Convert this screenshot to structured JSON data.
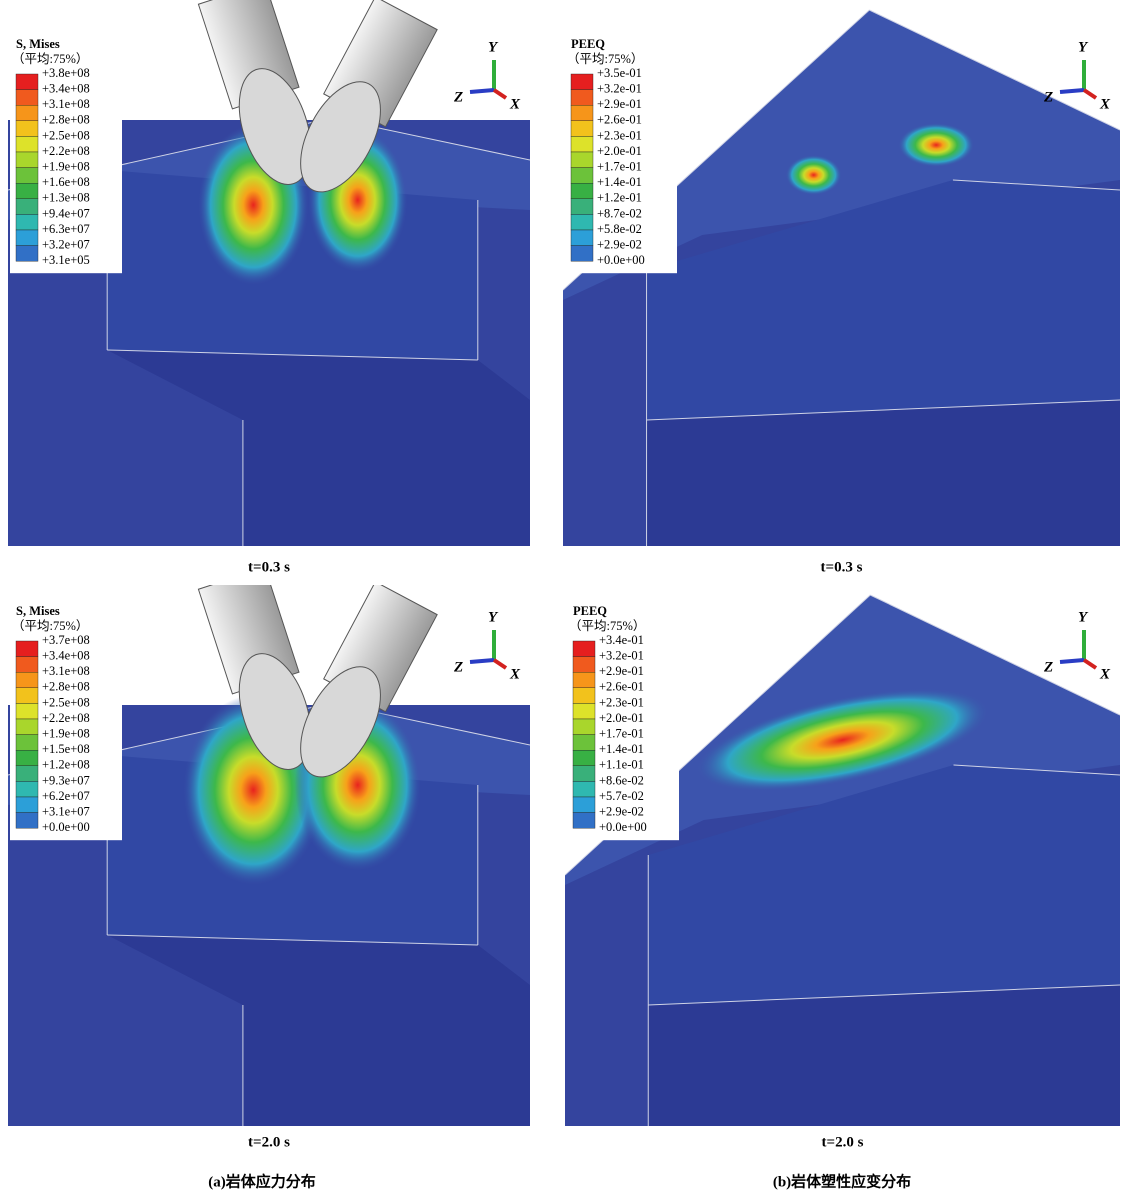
{
  "panels": [
    {
      "legend_title": "S, Mises",
      "legend_subtitle": "（平均:75%）",
      "legend_labels": [
        "+3.8e+08",
        "+3.4e+08",
        "+3.1e+08",
        "+2.8e+08",
        "+2.5e+08",
        "+2.2e+08",
        "+1.9e+08",
        "+1.6e+08",
        "+1.3e+08",
        "+9.4e+07",
        "+6.3e+07",
        "+3.2e+07",
        "+3.1e+05"
      ],
      "axes": {
        "y": "Y",
        "z": "Z",
        "x": "X"
      },
      "time": "t=0.3 s"
    },
    {
      "legend_title": "PEEQ",
      "legend_subtitle": "（平均:75%）",
      "legend_labels": [
        "+3.5e-01",
        "+3.2e-01",
        "+2.9e-01",
        "+2.6e-01",
        "+2.3e-01",
        "+2.0e-01",
        "+1.7e-01",
        "+1.4e-01",
        "+1.2e-01",
        "+8.7e-02",
        "+5.8e-02",
        "+2.9e-02",
        "+0.0e+00"
      ],
      "axes": {
        "y": "Y",
        "z": "Z",
        "x": "X"
      },
      "time": "t=0.3 s"
    },
    {
      "legend_title": "S, Mises",
      "legend_subtitle": "（平均:75%）",
      "legend_labels": [
        "+3.7e+08",
        "+3.4e+08",
        "+3.1e+08",
        "+2.8e+08",
        "+2.5e+08",
        "+2.2e+08",
        "+1.9e+08",
        "+1.5e+08",
        "+1.2e+08",
        "+9.3e+07",
        "+6.2e+07",
        "+3.1e+07",
        "+0.0e+00"
      ],
      "axes": {
        "y": "Y",
        "z": "Z",
        "x": "X"
      },
      "time": "t=2.0 s"
    },
    {
      "legend_title": "PEEQ",
      "legend_subtitle": "（平均:75%）",
      "legend_labels": [
        "+3.4e-01",
        "+3.2e-01",
        "+2.9e-01",
        "+2.6e-01",
        "+2.3e-01",
        "+2.0e-01",
        "+1.7e-01",
        "+1.4e-01",
        "+1.1e-01",
        "+8.6e-02",
        "+5.7e-02",
        "+2.9e-02",
        "+0.0e+00"
      ],
      "axes": {
        "y": "Y",
        "z": "Z",
        "x": "X"
      },
      "time": "t=2.0 s"
    }
  ],
  "captions": [
    "(a)岩体应力分布",
    "(b)岩体塑性应变分布"
  ]
}
